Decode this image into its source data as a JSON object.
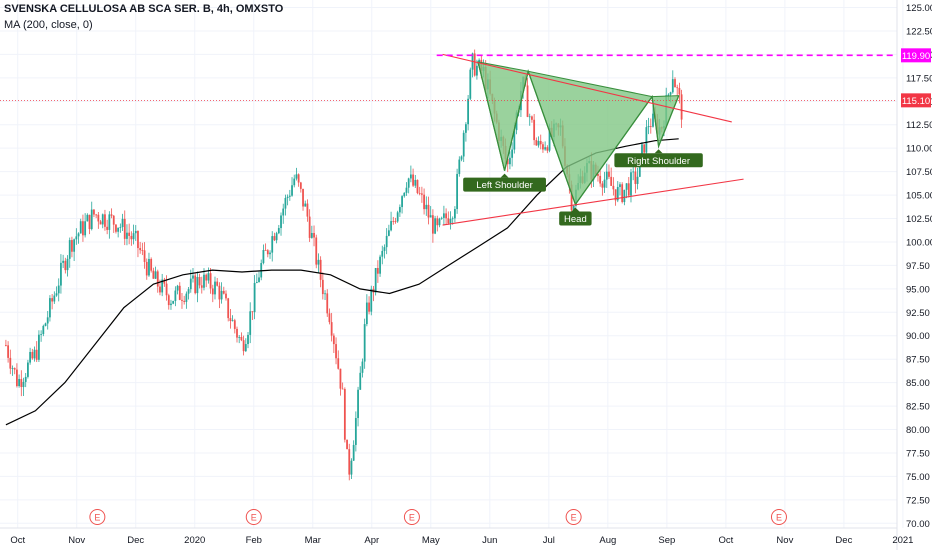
{
  "chart_data": {
    "type": "candlestick",
    "header": {
      "title": "SVENSKA CELLULOSA AB SCA SER. B, 4h, OMXSTO",
      "indicator": "MA (200, close, 0)"
    },
    "y_axis": {
      "range": [
        69.5,
        125.8
      ],
      "ticks": [
        "125.00",
        "122.50",
        "120.00",
        "117.50",
        "115.00",
        "112.50",
        "110.00",
        "107.50",
        "105.00",
        "102.50",
        "100.00",
        "97.50",
        "95.00",
        "92.50",
        "90.00",
        "87.50",
        "85.00",
        "82.50",
        "80.00",
        "77.50",
        "75.00",
        "72.50",
        "70.00"
      ]
    },
    "x_axis": {
      "unit": "months (index 0 = Oct 2019)",
      "range": [
        -0.1,
        15.1
      ],
      "ticks": [
        {
          "label": "Oct",
          "x": 0.2
        },
        {
          "label": "Nov",
          "x": 1.2
        },
        {
          "label": "Dec",
          "x": 2.2
        },
        {
          "label": "2020",
          "x": 3.2
        },
        {
          "label": "Feb",
          "x": 4.2
        },
        {
          "label": "Mar",
          "x": 5.2
        },
        {
          "label": "Apr",
          "x": 6.2
        },
        {
          "label": "May",
          "x": 7.2
        },
        {
          "label": "Jun",
          "x": 8.2
        },
        {
          "label": "Jul",
          "x": 9.2
        },
        {
          "label": "Aug",
          "x": 10.2
        },
        {
          "label": "Sep",
          "x": 11.2
        },
        {
          "label": "Oct",
          "x": 12.2
        },
        {
          "label": "Nov",
          "x": 13.2
        },
        {
          "label": "Dec",
          "x": 14.2
        },
        {
          "label": "2021",
          "x": 15.2
        }
      ],
      "events": [
        {
          "label": "E",
          "x": 1.55
        },
        {
          "label": "E",
          "x": 4.2
        },
        {
          "label": "E",
          "x": 6.88
        },
        {
          "label": "E",
          "x": 9.62
        },
        {
          "label": "E",
          "x": 13.1
        }
      ]
    },
    "price_path": [
      [
        0.0,
        89
      ],
      [
        0.2,
        85
      ],
      [
        0.5,
        88
      ],
      [
        0.8,
        94
      ],
      [
        1.1,
        100
      ],
      [
        1.5,
        103
      ],
      [
        1.9,
        102
      ],
      [
        2.2,
        100
      ],
      [
        2.5,
        96
      ],
      [
        2.8,
        94
      ],
      [
        3.1,
        95
      ],
      [
        3.3,
        96
      ],
      [
        3.6,
        95
      ],
      [
        3.8,
        92
      ],
      [
        4.0,
        89
      ],
      [
        4.1,
        91
      ],
      [
        4.3,
        97
      ],
      [
        4.6,
        102
      ],
      [
        4.9,
        107
      ],
      [
        5.1,
        103
      ],
      [
        5.3,
        97
      ],
      [
        5.5,
        92
      ],
      [
        5.7,
        84
      ],
      [
        5.8,
        75
      ],
      [
        5.95,
        82
      ],
      [
        6.1,
        92
      ],
      [
        6.3,
        97
      ],
      [
        6.6,
        103
      ],
      [
        6.8,
        107
      ],
      [
        7.0,
        105
      ],
      [
        7.3,
        101
      ],
      [
        7.6,
        104
      ],
      [
        7.9,
        119
      ],
      [
        8.1,
        118
      ],
      [
        8.5,
        108
      ],
      [
        8.75,
        117
      ],
      [
        9.0,
        110
      ],
      [
        9.4,
        112
      ],
      [
        9.6,
        104
      ],
      [
        9.8,
        108
      ],
      [
        10.1,
        107
      ],
      [
        10.4,
        105
      ],
      [
        10.7,
        107
      ],
      [
        10.9,
        113
      ],
      [
        11.1,
        112
      ],
      [
        11.3,
        118
      ],
      [
        11.45,
        114
      ]
    ],
    "ma_200": [
      [
        0,
        80.5
      ],
      [
        0.5,
        82
      ],
      [
        1,
        85
      ],
      [
        1.5,
        89
      ],
      [
        2,
        93
      ],
      [
        2.5,
        95.5
      ],
      [
        3,
        96.5
      ],
      [
        3.5,
        97
      ],
      [
        4,
        96.8
      ],
      [
        4.5,
        97
      ],
      [
        5,
        97
      ],
      [
        5.5,
        96.5
      ],
      [
        6,
        95
      ],
      [
        6.5,
        94.5
      ],
      [
        7,
        95.5
      ],
      [
        7.5,
        97.5
      ],
      [
        8,
        99.5
      ],
      [
        8.5,
        101.5
      ],
      [
        9,
        105
      ],
      [
        9.5,
        108
      ],
      [
        10,
        109.5
      ],
      [
        10.5,
        110.2
      ],
      [
        11,
        110.8
      ],
      [
        11.4,
        111
      ]
    ],
    "horizontal_levels": [
      {
        "value": 119.9,
        "label": "119.90",
        "color": "#ff00ff",
        "style": "dashed"
      },
      {
        "value": 115.1,
        "label": "115.10",
        "color": "#f23645",
        "style": "dotted"
      }
    ],
    "trendlines": [
      {
        "from": [
          7.4,
          120.0
        ],
        "to": [
          12.3,
          112.8
        ],
        "color": "#f23645"
      },
      {
        "from": [
          7.4,
          101.8
        ],
        "to": [
          12.5,
          106.7
        ],
        "color": "#f23645"
      }
    ],
    "pattern_fill": {
      "color": "#81c784",
      "points": [
        [
          8.0,
          119.2
        ],
        [
          8.45,
          107.6
        ],
        [
          8.85,
          118.2
        ],
        [
          9.65,
          104.0
        ],
        [
          10.95,
          115.5
        ],
        [
          11.06,
          110.2
        ],
        [
          11.4,
          115.6
        ]
      ]
    },
    "pattern_labels": [
      {
        "text": "Left Shoulder",
        "x": 8.45,
        "y": 107.6
      },
      {
        "text": "Head",
        "x": 9.65,
        "y": 104.0
      },
      {
        "text": "Right Shoulder",
        "x": 11.06,
        "y": 110.2
      }
    ],
    "colors": {
      "up": "#26a69a",
      "down": "#ef5350",
      "ma": "#000000",
      "label_bg": "#33691e",
      "grid": "#f0f3fa",
      "axis_text": "#131722"
    },
    "grid": true
  }
}
